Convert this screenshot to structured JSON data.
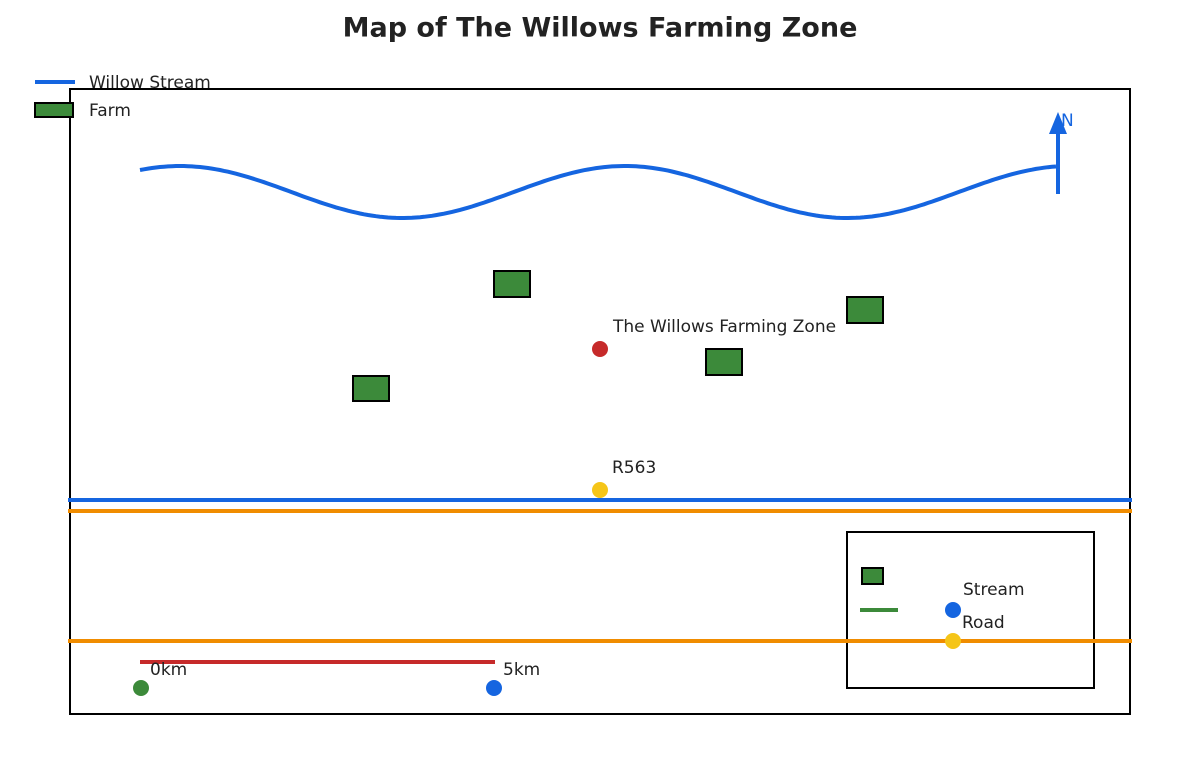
{
  "header": {
    "title": "Map of The Willows Farming Zone"
  },
  "legend": {
    "items": [
      "Willow Stream",
      "Farm"
    ]
  },
  "map": {
    "north": "N",
    "zone_label": "The Willows Farming Zone",
    "road_label": "R563"
  },
  "inset": {
    "items": [
      "Stream",
      "Road"
    ]
  },
  "scale": {
    "start": "0km",
    "end": "5km"
  }
}
